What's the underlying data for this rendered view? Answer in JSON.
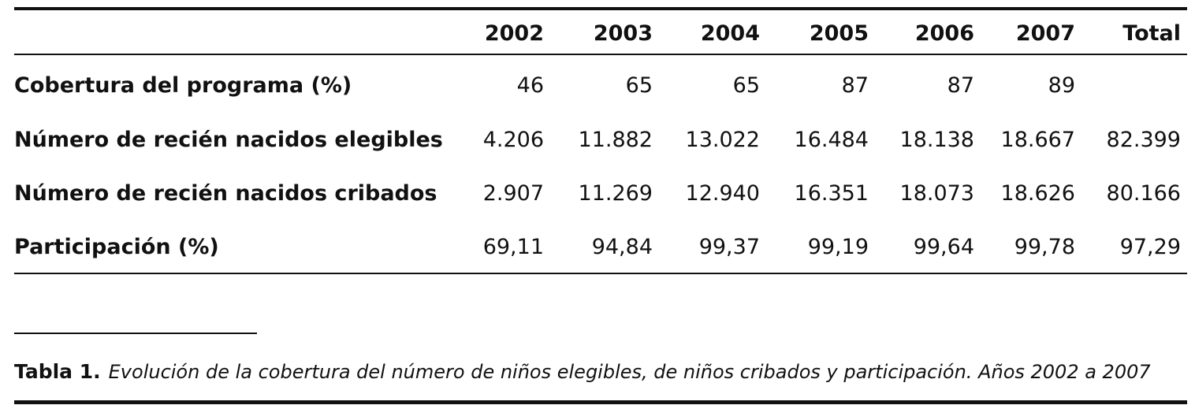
{
  "table": {
    "columns": [
      "2002",
      "2003",
      "2004",
      "2005",
      "2006",
      "2007",
      "Total"
    ],
    "rows": [
      {
        "label": "Cobertura del programa (%)",
        "values": [
          "46",
          "65",
          "65",
          "87",
          "87",
          "89",
          ""
        ]
      },
      {
        "label": "Número de recién nacidos elegibles",
        "values": [
          "4.206",
          "11.882",
          "13.022",
          "16.484",
          "18.138",
          "18.667",
          "82.399"
        ]
      },
      {
        "label": "Número de recién nacidos cribados",
        "values": [
          "2.907",
          "11.269",
          "12.940",
          "16.351",
          "18.073",
          "18.626",
          "80.166"
        ]
      },
      {
        "label": "Participación (%)",
        "values": [
          "69,11",
          "94,84",
          "99,37",
          "99,19",
          "99,64",
          "99,78",
          "97,29"
        ]
      }
    ]
  },
  "caption": {
    "label": "Tabla 1.",
    "text": "Evolución de la cobertura del número de niños elegibles, de niños cribados y participación. Años 2002 a 2007"
  }
}
